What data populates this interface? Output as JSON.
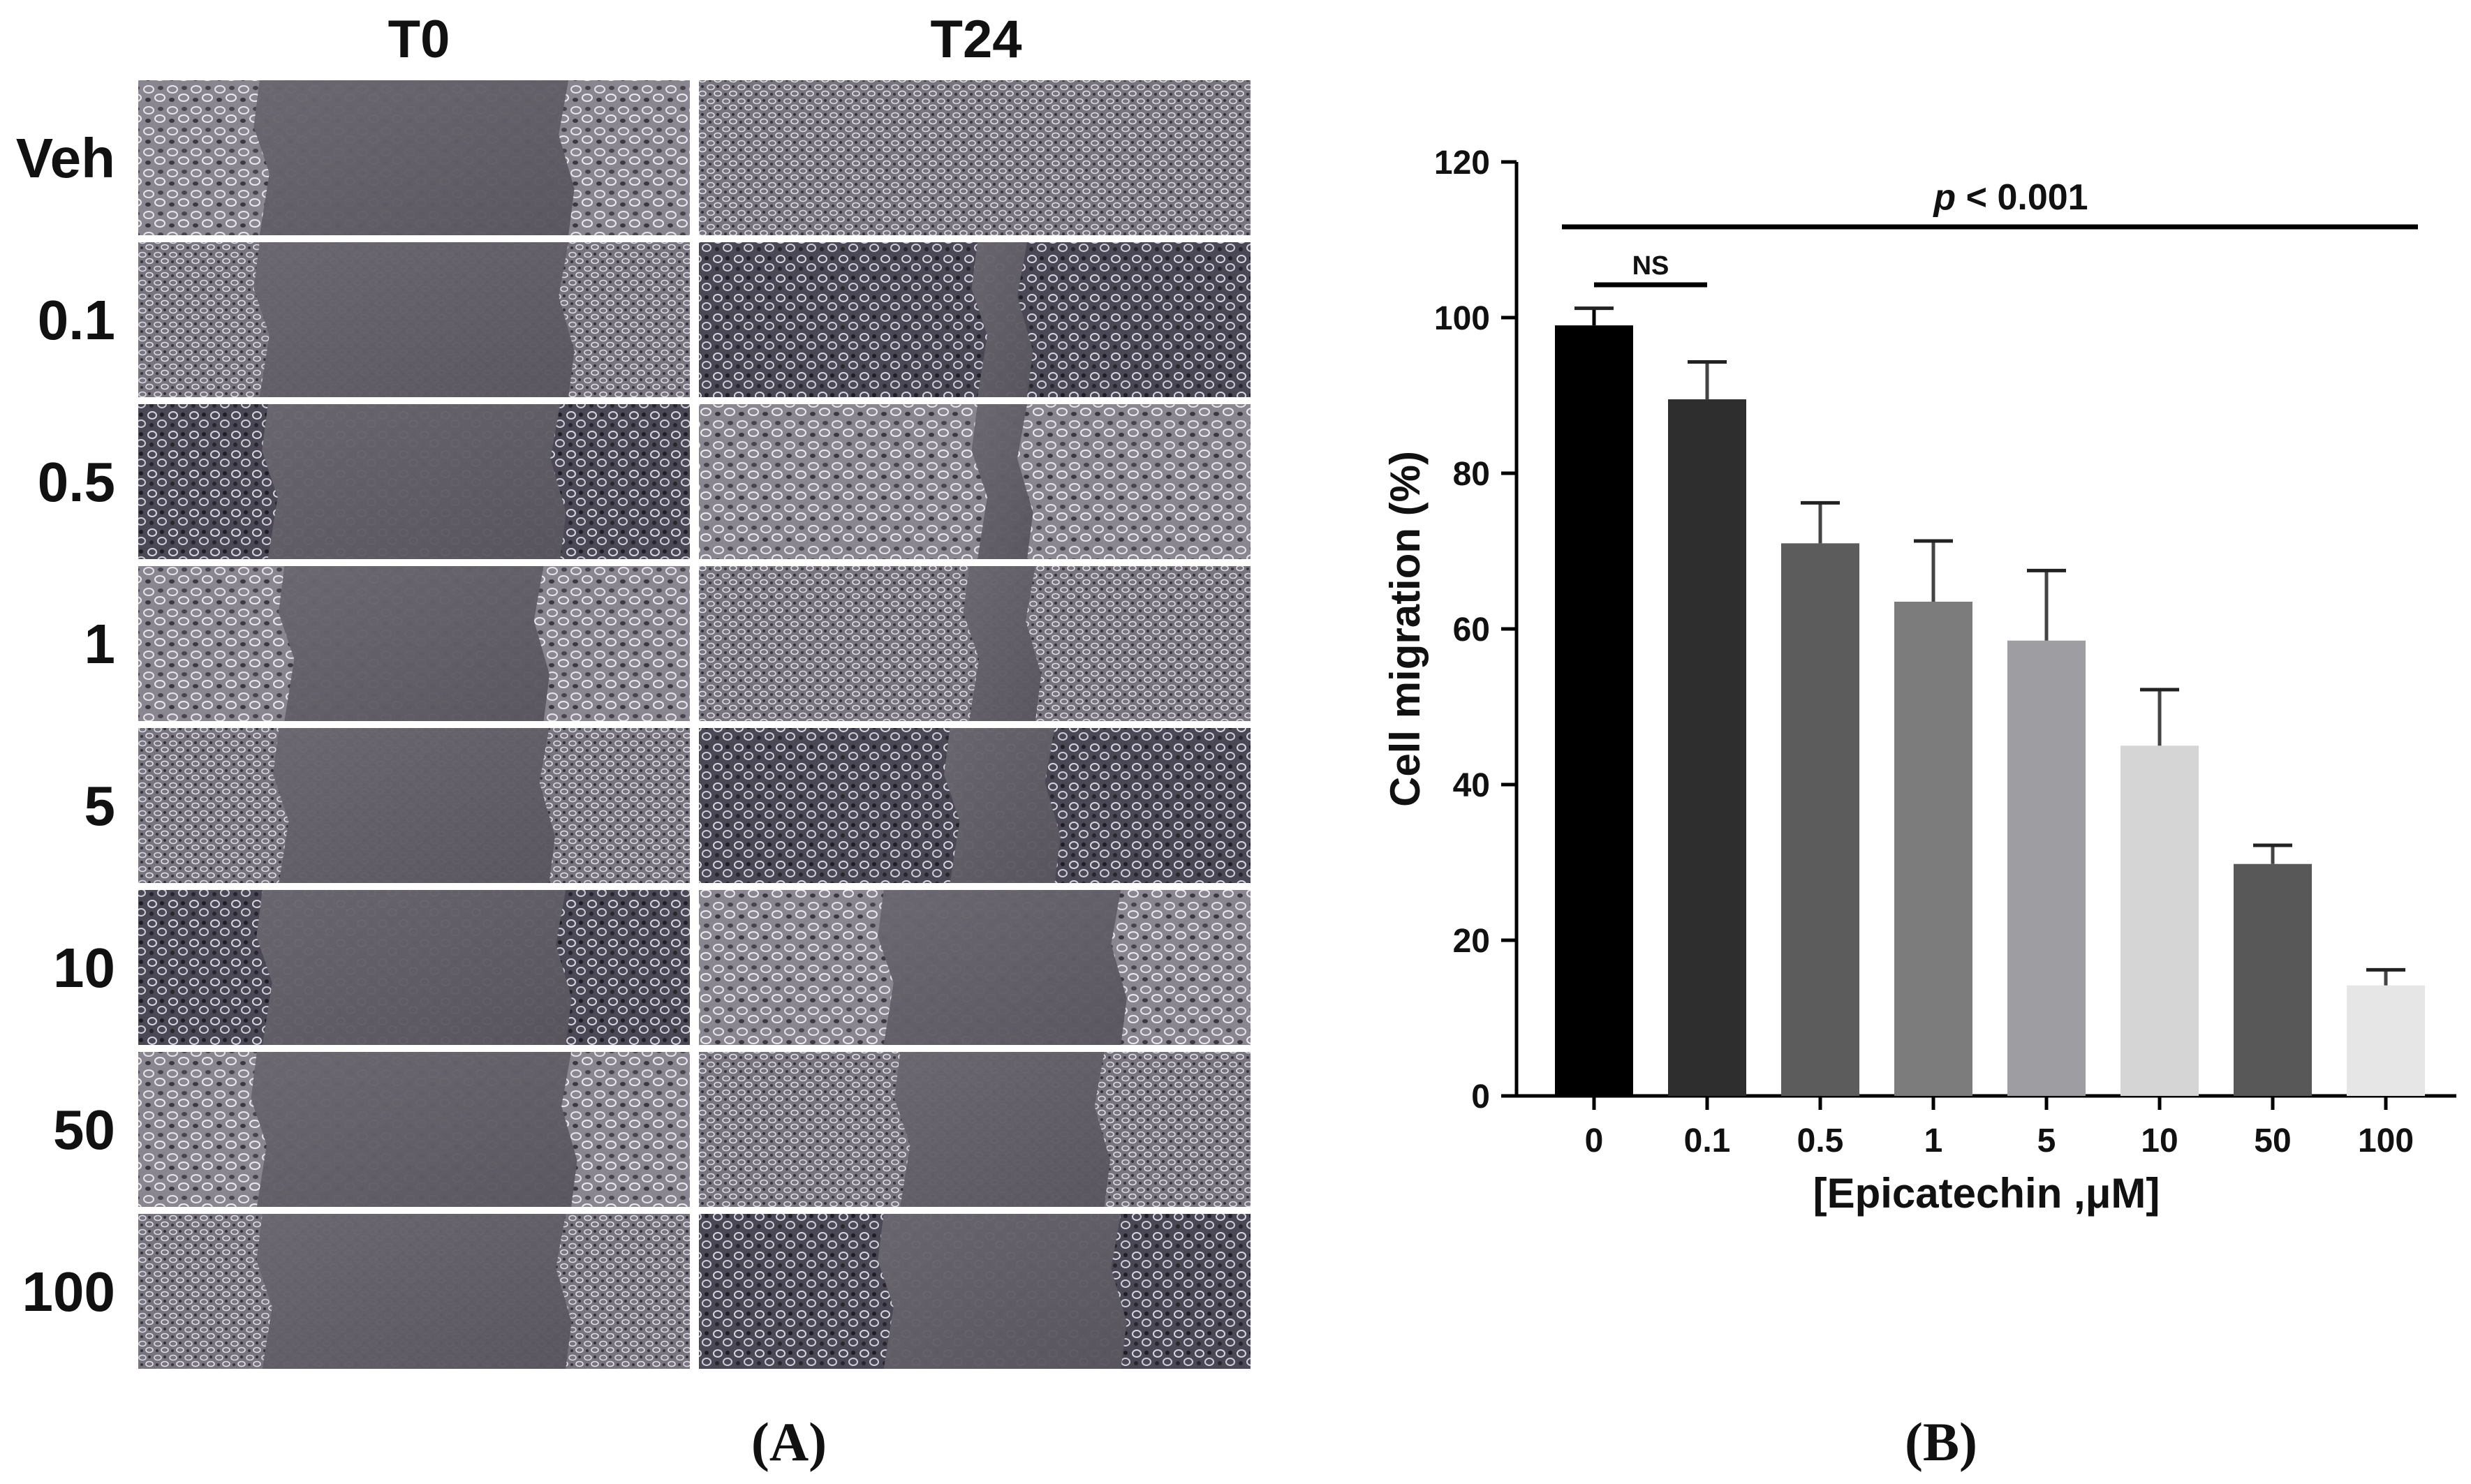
{
  "panel_a": {
    "col_headers": [
      "T0",
      "T24"
    ],
    "row_labels": [
      "Veh",
      "0.1",
      "0.5",
      "1",
      "5",
      "10",
      "50",
      "100"
    ],
    "gap_fraction_T0": [
      0.56,
      0.56,
      0.53,
      0.47,
      0.49,
      0.55,
      0.57,
      0.55
    ],
    "gap_fraction_T24": [
      0.0,
      0.09,
      0.09,
      0.12,
      0.19,
      0.43,
      0.37,
      0.43
    ],
    "panel_label": "(A)"
  },
  "panel_b": {
    "panel_label": "(B)",
    "significance": {
      "overall": {
        "prefix": "p",
        "text": " < 0.001",
        "from": "0",
        "to": "100"
      },
      "pair": {
        "text": "NS",
        "from": "0",
        "to": "0.1"
      }
    }
  },
  "chart_data": {
    "type": "bar",
    "title": "",
    "xlabel": "[Epicatechin ,μM]",
    "ylabel": "Cell migration (%)",
    "ylim": [
      0,
      120
    ],
    "yticks": [
      0,
      20,
      40,
      60,
      80,
      100,
      120
    ],
    "categories": [
      "0",
      "0.1",
      "0.5",
      "1",
      "5",
      "10",
      "50",
      "100"
    ],
    "values": [
      99,
      89.5,
      71,
      63.5,
      58.5,
      45,
      29.8,
      14.2
    ],
    "errors": [
      2.2,
      4.8,
      5.2,
      7.8,
      9,
      7.2,
      2.4,
      2
    ],
    "colors": [
      "#000000",
      "#2e2e2e",
      "#5c5c5c",
      "#7c7c7c",
      "#9e9ea2",
      "#d5d5d5",
      "#585858",
      "#e6e6e6"
    ],
    "grid": false,
    "legend": "none"
  }
}
